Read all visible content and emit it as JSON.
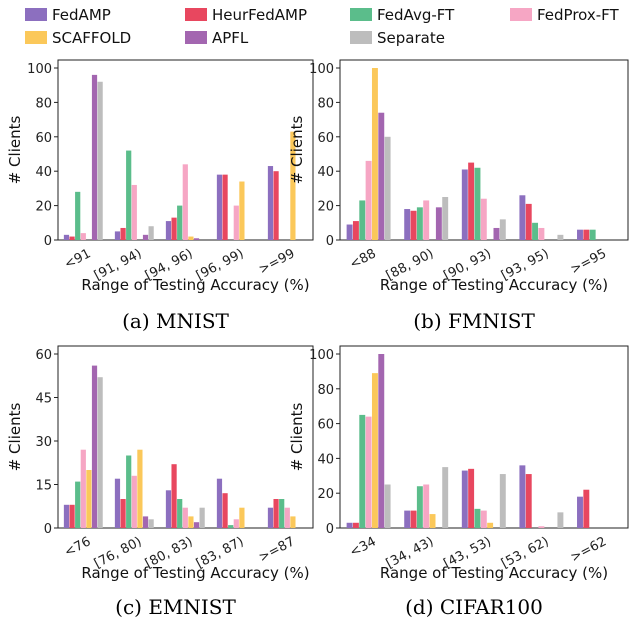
{
  "legend": [
    {
      "name": "FedAMP",
      "color": "#8c6fbf"
    },
    {
      "name": "HeurFedAMP",
      "color": "#e8475f"
    },
    {
      "name": "FedAvg-FT",
      "color": "#5bbd8b"
    },
    {
      "name": "FedProx-FT",
      "color": "#f6a6c4"
    },
    {
      "name": "SCAFFOLD",
      "color": "#fbc85a"
    },
    {
      "name": "APFL",
      "color": "#a366b0"
    },
    {
      "name": "Separate",
      "color": "#bdbdbd"
    }
  ],
  "chart_data": [
    {
      "type": "bar",
      "caption": "(a) MNIST",
      "xlabel": "Range of Testing Accuracy (%)",
      "ylabel": "# Clients",
      "ylim": [
        0,
        100
      ],
      "yticks": [
        0,
        20,
        40,
        60,
        80,
        100
      ],
      "categories": [
        "<91",
        "[91, 94)",
        "[94, 96)",
        "[96, 99)",
        ">=99"
      ],
      "series": [
        {
          "name": "FedAMP",
          "values": [
            3,
            5,
            11,
            38,
            43
          ]
        },
        {
          "name": "HeurFedAMP",
          "values": [
            2,
            7,
            13,
            38,
            40
          ]
        },
        {
          "name": "FedAvg-FT",
          "values": [
            28,
            52,
            20,
            0,
            0
          ]
        },
        {
          "name": "FedProx-FT",
          "values": [
            4,
            32,
            44,
            20,
            0
          ]
        },
        {
          "name": "SCAFFOLD",
          "values": [
            0,
            0,
            2,
            34,
            63
          ]
        },
        {
          "name": "APFL",
          "values": [
            96,
            3,
            1,
            0,
            0
          ]
        },
        {
          "name": "Separate",
          "values": [
            92,
            8,
            0,
            0,
            0
          ]
        }
      ]
    },
    {
      "type": "bar",
      "caption": "(b) FMNIST",
      "xlabel": "Range of Testing Accuracy (%)",
      "ylabel": "",
      "ylim": [
        0,
        100
      ],
      "yticks": [
        0,
        20,
        40,
        60,
        80,
        100
      ],
      "categories": [
        "<88",
        "[88, 90)",
        "[90, 93)",
        "[93, 95)",
        ">=95"
      ],
      "series": [
        {
          "name": "FedAMP",
          "values": [
            9,
            18,
            41,
            26,
            6
          ]
        },
        {
          "name": "HeurFedAMP",
          "values": [
            11,
            17,
            45,
            21,
            6
          ]
        },
        {
          "name": "FedAvg-FT",
          "values": [
            23,
            19,
            42,
            10,
            6
          ]
        },
        {
          "name": "FedProx-FT",
          "values": [
            46,
            23,
            24,
            7,
            0
          ]
        },
        {
          "name": "SCAFFOLD",
          "values": [
            100,
            0,
            0,
            0,
            0
          ]
        },
        {
          "name": "APFL",
          "values": [
            74,
            19,
            7,
            0,
            0
          ]
        },
        {
          "name": "Separate",
          "values": [
            60,
            25,
            12,
            3,
            0
          ]
        }
      ]
    },
    {
      "type": "bar",
      "caption": "(c) EMNIST",
      "xlabel": "Range of Testing Accuracy (%)",
      "ylabel": "# Clients",
      "ylim": [
        0,
        60
      ],
      "yticks": [
        0,
        15,
        30,
        45,
        60
      ],
      "categories": [
        "<76",
        "[76, 80)",
        "[80, 83)",
        "[83, 87)",
        ">=87"
      ],
      "series": [
        {
          "name": "FedAMP",
          "values": [
            8,
            17,
            13,
            17,
            7
          ]
        },
        {
          "name": "HeurFedAMP",
          "values": [
            8,
            10,
            22,
            12,
            10
          ]
        },
        {
          "name": "FedAvg-FT",
          "values": [
            16,
            25,
            10,
            1,
            10
          ]
        },
        {
          "name": "FedProx-FT",
          "values": [
            27,
            18,
            7,
            3,
            7
          ]
        },
        {
          "name": "SCAFFOLD",
          "values": [
            20,
            27,
            4,
            7,
            4
          ]
        },
        {
          "name": "APFL",
          "values": [
            56,
            4,
            2,
            0,
            0
          ]
        },
        {
          "name": "Separate",
          "values": [
            52,
            3,
            7,
            0,
            0
          ]
        }
      ]
    },
    {
      "type": "bar",
      "caption": "(d) CIFAR100",
      "xlabel": "Range of Testing Accuracy (%)",
      "ylabel": "",
      "ylim": [
        0,
        100
      ],
      "yticks": [
        0,
        20,
        40,
        60,
        80,
        100
      ],
      "categories": [
        "<34",
        "[34, 43)",
        "[43, 53)",
        "[53, 62)",
        ">=62"
      ],
      "series": [
        {
          "name": "FedAMP",
          "values": [
            3,
            10,
            33,
            36,
            18
          ]
        },
        {
          "name": "HeurFedAMP",
          "values": [
            3,
            10,
            34,
            31,
            22
          ]
        },
        {
          "name": "FedAvg-FT",
          "values": [
            65,
            24,
            11,
            0,
            0
          ]
        },
        {
          "name": "FedProx-FT",
          "values": [
            64,
            25,
            10,
            1,
            0
          ]
        },
        {
          "name": "SCAFFOLD",
          "values": [
            89,
            8,
            3,
            0,
            0
          ]
        },
        {
          "name": "APFL",
          "values": [
            100,
            0,
            0,
            0,
            0
          ]
        },
        {
          "name": "Separate",
          "values": [
            25,
            35,
            31,
            9,
            0
          ]
        }
      ]
    }
  ]
}
